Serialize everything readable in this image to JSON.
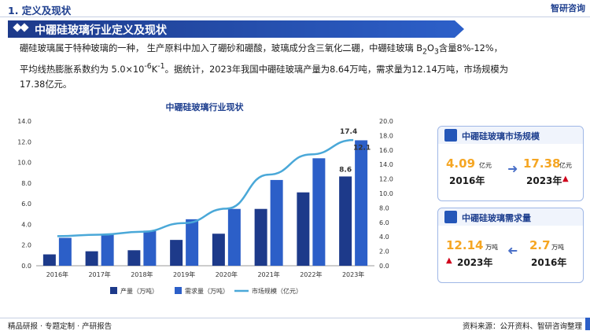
{
  "header": {
    "section": "1. 定义及现状",
    "logo": "智研咨询"
  },
  "banner": {
    "title": "中硼硅玻璃行业定义及现状"
  },
  "paragraph": {
    "line1": "硼硅玻璃属于特种玻璃的一种， 生产原料中加入了硼砂和硼酸，玻璃成分含三氧化二硼，中硼硅玻璃  B",
    "sub3": "2",
    "mid": "O",
    "sub4": "3",
    "tail1": "含量8%-12%，",
    "line2a": "平均线热膨胀系数约为  5.0×10",
    "sup": "-6",
    "line2b": "K",
    "sup2": "-1",
    "line2c": "。据统计，2023年我国中硼硅玻璃产量为8.64万吨，需求量为12.14万吨，市场规模为",
    "line3": "17.38亿元。"
  },
  "chart_data": {
    "type": "bar",
    "title": "中硼硅玻璃行业现状",
    "categories": [
      "2016年",
      "2017年",
      "2018年",
      "2019年",
      "2020年",
      "2021年",
      "2022年",
      "2023年"
    ],
    "series": [
      {
        "name": "产量（万吨）",
        "type": "bar",
        "axis": "left",
        "color": "#1d3a8a",
        "values": [
          1.1,
          1.4,
          1.5,
          2.5,
          3.1,
          5.5,
          7.1,
          8.64
        ]
      },
      {
        "name": "需求量（万吨）",
        "type": "bar",
        "axis": "left",
        "color": "#2c5fc8",
        "values": [
          2.7,
          3.0,
          3.4,
          4.5,
          5.5,
          8.3,
          10.4,
          12.14
        ]
      },
      {
        "name": "市场规模（亿元）",
        "type": "line",
        "axis": "right",
        "color": "#4aa8d8",
        "values": [
          4.09,
          4.3,
          4.7,
          5.9,
          7.9,
          12.6,
          15.4,
          17.38
        ]
      }
    ],
    "left_axis": {
      "min": 0,
      "max": 14,
      "ticks": [
        "0.0",
        "2.0",
        "4.0",
        "6.0",
        "8.0",
        "10.0",
        "12.0",
        "14.0"
      ]
    },
    "right_axis": {
      "min": 0,
      "max": 20,
      "ticks": [
        "0.0",
        "2.0",
        "4.0",
        "6.0",
        "8.0",
        "10.0",
        "12.0",
        "14.0",
        "16.0",
        "18.0",
        "20.0"
      ]
    },
    "annotations": [
      "17.4",
      "12.1",
      "8.6"
    ],
    "legend_position": "bottom",
    "grid": false
  },
  "card_market": {
    "title": "中硼硅玻璃市场规模",
    "from_value": "4.09",
    "from_unit": "亿元",
    "from_year": "2016年",
    "to_value": "17.38",
    "to_unit": "亿元",
    "to_year": "2023年"
  },
  "card_demand": {
    "title": "中硼硅玻璃需求量",
    "a_value": "12.14",
    "a_unit": "万吨",
    "a_year": "2023年",
    "b_value": "2.7",
    "b_unit": "万吨",
    "b_year": "2016年"
  },
  "footer": {
    "left": "精品研报 · 专题定制 · 产研报告",
    "right": "资料来源：公开资料、智研咨询整理"
  }
}
